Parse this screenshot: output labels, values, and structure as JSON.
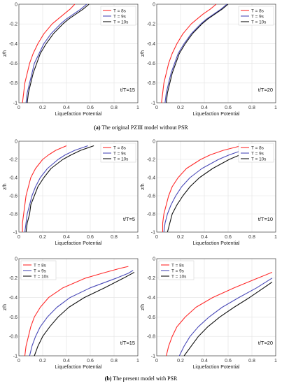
{
  "captions": {
    "a": {
      "tag": "(a)",
      "text": " The original PZIII model without PSR"
    },
    "b": {
      "tag": "(b)",
      "text": " The present model with PSR"
    }
  },
  "colors": {
    "T8": "#ff2a2a",
    "T9": "#4a4ab8",
    "T10": "#111111",
    "axis": "#444444",
    "grid": "#e2e2e2"
  },
  "chart_data": [
    {
      "type": "line",
      "panel": "a-left",
      "annotation": "t/T=15",
      "xlabel": "Liquefaction Potential",
      "ylabel": "z/h",
      "xlim": [
        0,
        1
      ],
      "ylim": [
        -1,
        0
      ],
      "grid": true,
      "legend": "top-right",
      "xticks": [
        "0",
        "0.2",
        "0.4",
        "0.6",
        "0.8",
        "1"
      ],
      "yticks": [
        "0",
        "-0.2",
        "-0.4",
        "-0.6",
        "-0.8",
        "-1"
      ],
      "y": [
        0,
        -0.05,
        -0.1,
        -0.15,
        -0.2,
        -0.3,
        -0.4,
        -0.5,
        -0.6,
        -0.7,
        -0.8,
        -0.9,
        -1.0
      ],
      "series": [
        {
          "name": "T = 8s",
          "x": [
            0.47,
            0.43,
            0.38,
            0.33,
            0.28,
            0.21,
            0.16,
            0.12,
            0.09,
            0.07,
            0.05,
            0.04,
            0.03
          ]
        },
        {
          "name": "T = 9s",
          "x": [
            0.57,
            0.52,
            0.46,
            0.4,
            0.35,
            0.27,
            0.21,
            0.17,
            0.13,
            0.11,
            0.09,
            0.07,
            0.06
          ]
        },
        {
          "name": "T = 10s",
          "x": [
            0.59,
            0.54,
            0.48,
            0.42,
            0.37,
            0.29,
            0.23,
            0.18,
            0.15,
            0.12,
            0.1,
            0.08,
            0.07
          ]
        }
      ]
    },
    {
      "type": "line",
      "panel": "a-right",
      "annotation": "t/T=20",
      "xlabel": "Liquefaction Potential",
      "ylabel": "z/h",
      "xlim": [
        0,
        1
      ],
      "ylim": [
        -1,
        0
      ],
      "grid": true,
      "legend": "top-right",
      "xticks": [
        "0",
        "0.2",
        "0.4",
        "0.6",
        "0.8",
        "1"
      ],
      "yticks": [
        "0",
        "-0.2",
        "-0.4",
        "-0.6",
        "-0.8",
        "-1"
      ],
      "y": [
        0,
        -0.05,
        -0.1,
        -0.15,
        -0.2,
        -0.3,
        -0.4,
        -0.5,
        -0.6,
        -0.7,
        -0.8,
        -0.9,
        -1.0
      ],
      "series": [
        {
          "name": "T = 8s",
          "x": [
            0.5,
            0.45,
            0.39,
            0.34,
            0.29,
            0.22,
            0.17,
            0.13,
            0.1,
            0.08,
            0.06,
            0.05,
            0.04
          ]
        },
        {
          "name": "T = 9s",
          "x": [
            0.59,
            0.54,
            0.48,
            0.42,
            0.37,
            0.29,
            0.23,
            0.18,
            0.15,
            0.12,
            0.1,
            0.08,
            0.07
          ]
        },
        {
          "name": "T = 10s",
          "x": [
            0.6,
            0.55,
            0.49,
            0.43,
            0.38,
            0.3,
            0.24,
            0.19,
            0.16,
            0.13,
            0.11,
            0.09,
            0.08
          ]
        }
      ]
    },
    {
      "type": "line",
      "panel": "b-left",
      "annotation": "t/T=5",
      "xlabel": "Liquefaction Potential",
      "ylabel": "z/h",
      "xlim": [
        0,
        1
      ],
      "ylim": [
        -1,
        0
      ],
      "grid": true,
      "legend": "top-right",
      "xticks": [
        "0",
        "0.2",
        "0.4",
        "0.6",
        "0.8",
        "1"
      ],
      "yticks": [
        "0",
        "-0.2",
        "-0.4",
        "-0.6",
        "-0.8",
        "-1"
      ],
      "y": [
        -0.05,
        -0.1,
        -0.15,
        -0.2,
        -0.3,
        -0.4,
        -0.5,
        -0.6,
        -0.7,
        -0.8,
        -0.9,
        -1.0
      ],
      "series": [
        {
          "name": "T = 8s",
          "x": [
            0.4,
            0.31,
            0.25,
            0.2,
            0.14,
            0.1,
            0.08,
            0.06,
            0.05,
            0.04,
            0.03,
            0.03
          ]
        },
        {
          "name": "T = 9s",
          "x": [
            0.58,
            0.47,
            0.39,
            0.33,
            0.24,
            0.18,
            0.14,
            0.11,
            0.09,
            0.07,
            0.06,
            0.05
          ]
        },
        {
          "name": "T = 10s",
          "x": [
            0.63,
            0.52,
            0.44,
            0.37,
            0.27,
            0.21,
            0.16,
            0.13,
            0.1,
            0.09,
            0.07,
            0.06
          ]
        }
      ]
    },
    {
      "type": "line",
      "panel": "b-right",
      "annotation": "t/T=10",
      "xlabel": "Liquefaction Potential",
      "ylabel": "z/h",
      "xlim": [
        0,
        1
      ],
      "ylim": [
        -1,
        0
      ],
      "grid": true,
      "legend": "top-right",
      "xticks": [
        "0",
        "0.2",
        "0.4",
        "0.6",
        "0.8",
        "1"
      ],
      "yticks": [
        "0",
        "-0.2",
        "-0.4",
        "-0.6",
        "-0.8",
        "-1"
      ],
      "series": [
        {
          "name": "T = 8s",
          "y": [
            -0.05,
            -0.1,
            -0.15,
            -0.2,
            -0.3,
            -0.4,
            -0.5,
            -0.6,
            -0.7,
            -0.8,
            -0.9,
            -1.0
          ],
          "x": [
            0.71,
            0.56,
            0.45,
            0.37,
            0.25,
            0.18,
            0.13,
            0.1,
            0.08,
            0.06,
            0.05,
            0.05
          ]
        },
        {
          "name": "T = 9s",
          "y": [
            -0.05,
            -0.1,
            -0.15,
            -0.2,
            -0.3,
            -0.4,
            -0.5,
            -0.6,
            -0.7,
            -0.8,
            -0.9,
            -1.0
          ],
          "x": [
            0.86,
            0.72,
            0.61,
            0.52,
            0.38,
            0.28,
            0.21,
            0.16,
            0.12,
            0.09,
            0.07,
            0.06
          ]
        },
        {
          "name": "T = 10s",
          "y": [
            -0.07,
            -0.1,
            -0.15,
            -0.2,
            -0.3,
            -0.4,
            -0.5,
            -0.6,
            -0.7,
            -0.8,
            -0.9,
            -1.0
          ],
          "x": [
            0.88,
            0.8,
            0.7,
            0.61,
            0.47,
            0.36,
            0.28,
            0.22,
            0.17,
            0.13,
            0.11,
            0.09
          ]
        }
      ]
    },
    {
      "type": "line",
      "panel": "c-left",
      "annotation": "t/T=15",
      "xlabel": "Liquefaction Potential",
      "ylabel": "z/h",
      "xlim": [
        0,
        1
      ],
      "ylim": [
        -1,
        0
      ],
      "grid": true,
      "legend": "top-left",
      "xticks": [
        "0",
        "0.2",
        "0.4",
        "0.6",
        "0.8",
        "1"
      ],
      "yticks": [
        "0",
        "-0.2",
        "-0.4",
        "-0.6",
        "-0.8",
        "-1"
      ],
      "series": [
        {
          "name": "T = 8s",
          "y": [
            -0.08,
            -0.1,
            -0.15,
            -0.2,
            -0.3,
            -0.4,
            -0.5,
            -0.6,
            -0.7,
            -0.8,
            -0.9,
            -1.0
          ],
          "x": [
            0.92,
            0.85,
            0.7,
            0.56,
            0.37,
            0.25,
            0.18,
            0.13,
            0.1,
            0.08,
            0.06,
            0.05
          ]
        },
        {
          "name": "T = 9s",
          "y": [
            -0.12,
            -0.15,
            -0.2,
            -0.3,
            -0.4,
            -0.5,
            -0.6,
            -0.7,
            -0.8,
            -0.9,
            -1.0
          ],
          "x": [
            0.96,
            0.92,
            0.82,
            0.6,
            0.43,
            0.32,
            0.24,
            0.18,
            0.14,
            0.11,
            0.09
          ]
        },
        {
          "name": "T = 10s",
          "y": [
            -0.14,
            -0.2,
            -0.3,
            -0.4,
            -0.5,
            -0.6,
            -0.7,
            -0.8,
            -0.9,
            -1.0
          ],
          "x": [
            0.97,
            0.88,
            0.72,
            0.55,
            0.42,
            0.33,
            0.26,
            0.2,
            0.16,
            0.13
          ]
        }
      ]
    },
    {
      "type": "line",
      "panel": "c-right",
      "annotation": "t/T=20",
      "xlabel": "Liquefaction Potential",
      "ylabel": "z/h",
      "xlim": [
        0,
        1
      ],
      "ylim": [
        -1,
        0
      ],
      "grid": true,
      "legend": "top-left",
      "xticks": [
        "0",
        "0.2",
        "0.4",
        "0.6",
        "0.8",
        "1"
      ],
      "yticks": [
        "0",
        "-0.2",
        "-0.4",
        "-0.6",
        "-0.8",
        "-1"
      ],
      "series": [
        {
          "name": "T = 8s",
          "y": [
            -0.14,
            -0.2,
            -0.3,
            -0.4,
            -0.5,
            -0.6,
            -0.7,
            -0.8,
            -0.9,
            -1.0
          ],
          "x": [
            0.97,
            0.85,
            0.65,
            0.47,
            0.33,
            0.24,
            0.17,
            0.13,
            0.1,
            0.08
          ]
        },
        {
          "name": "T = 9s",
          "y": [
            -0.2,
            -0.3,
            -0.4,
            -0.5,
            -0.6,
            -0.7,
            -0.8,
            -0.9,
            -1.0
          ],
          "x": [
            0.97,
            0.84,
            0.69,
            0.55,
            0.44,
            0.35,
            0.28,
            0.23,
            0.19
          ]
        },
        {
          "name": "T = 10s",
          "y": [
            -0.24,
            -0.3,
            -0.4,
            -0.5,
            -0.6,
            -0.7,
            -0.8,
            -0.9,
            -1.0
          ],
          "x": [
            0.97,
            0.9,
            0.78,
            0.65,
            0.53,
            0.43,
            0.35,
            0.29,
            0.23
          ]
        }
      ]
    }
  ]
}
